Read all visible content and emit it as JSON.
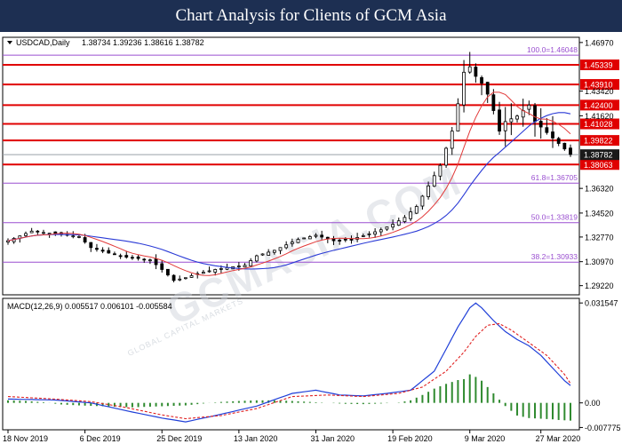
{
  "header": {
    "title": "Chart Analysis for Clients of GCM Asia"
  },
  "watermark": {
    "text": "GCMASIA.COM",
    "subtext": "GLOBAL CAPITAL MARKETS"
  },
  "colors": {
    "banner_bg": "#1d2f52",
    "resistance_line": "#e00000",
    "label_red_bg": "#e00000",
    "fib_line": "#9a4fd0",
    "ma_fast": "#e23a3a",
    "ma_slow": "#2a3ad6",
    "macd_line": "#1f3fd8",
    "signal_line": "#e02020",
    "histogram": "#2f8a2f",
    "candle_bull": "#ffffff",
    "candle_bear": "#000000"
  },
  "chart_data": [
    {
      "type": "candlestick",
      "symbol_info": "USDCAD,Daily",
      "ohlc_text": [
        "1.38734",
        "1.39236",
        "1.38616",
        "1.38782"
      ],
      "ylim": [
        1.2855,
        1.4735
      ],
      "y_ticks": [
        "1.46970",
        "1.43420",
        "1.41620",
        "1.36320",
        "1.34520",
        "1.32770",
        "1.30970",
        "1.29220"
      ],
      "last_price": "1.38782",
      "horizontal_levels": [
        {
          "value": 1.46048,
          "label": "100.0=1.46048",
          "kind": "fib"
        },
        {
          "value": 1.45339,
          "label": "1.45339",
          "kind": "resistance"
        },
        {
          "value": 1.4391,
          "label": "1.43910",
          "kind": "resistance"
        },
        {
          "value": 1.424,
          "label": "1.42400",
          "kind": "resistance"
        },
        {
          "value": 1.41028,
          "label": "1.41028",
          "kind": "resistance"
        },
        {
          "value": 1.39822,
          "label": "1.39822",
          "kind": "resistance"
        },
        {
          "value": 1.38063,
          "label": "1.38063",
          "kind": "support"
        },
        {
          "value": 1.36705,
          "label": "61.8=1.36705",
          "kind": "fib"
        },
        {
          "value": 1.33819,
          "label": "50.0=1.33819",
          "kind": "fib"
        },
        {
          "value": 1.30933,
          "label": "38.2=1.30933",
          "kind": "fib"
        }
      ],
      "x_ticks": [
        "18 Nov 2019",
        "6 Dec 2019",
        "25 Dec 2019",
        "13 Jan 2020",
        "31 Jan 2020",
        "19 Feb 2020",
        "9 Mar 2020",
        "27 Mar 2020"
      ],
      "close_path": [
        [
          0,
          1.325
        ],
        [
          4,
          1.332
        ],
        [
          8,
          1.33
        ],
        [
          12,
          1.328
        ],
        [
          14,
          1.32
        ],
        [
          17,
          1.316
        ],
        [
          20,
          1.313
        ],
        [
          24,
          1.311
        ],
        [
          26,
          1.304
        ],
        [
          28,
          1.296
        ],
        [
          30,
          1.298
        ],
        [
          32,
          1.301
        ],
        [
          35,
          1.304
        ],
        [
          38,
          1.306
        ],
        [
          40,
          1.307
        ],
        [
          42,
          1.314
        ],
        [
          45,
          1.318
        ],
        [
          49,
          1.326
        ],
        [
          52,
          1.329
        ],
        [
          55,
          1.325
        ],
        [
          58,
          1.326
        ],
        [
          61,
          1.33
        ],
        [
          63,
          1.333
        ],
        [
          65,
          1.337
        ],
        [
          67,
          1.342
        ],
        [
          69,
          1.35
        ],
        [
          71,
          1.365
        ],
        [
          73,
          1.38
        ],
        [
          75,
          1.405
        ],
        [
          76,
          1.425
        ],
        [
          77,
          1.448
        ],
        [
          78,
          1.452
        ],
        [
          79,
          1.445
        ],
        [
          80,
          1.44
        ],
        [
          81,
          1.432
        ],
        [
          82,
          1.42
        ],
        [
          83,
          1.405
        ],
        [
          84,
          1.412
        ],
        [
          85,
          1.414
        ],
        [
          86,
          1.416
        ],
        [
          87,
          1.42
        ],
        [
          88,
          1.424
        ],
        [
          89,
          1.412
        ],
        [
          90,
          1.408
        ],
        [
          91,
          1.404
        ],
        [
          92,
          1.4
        ],
        [
          93,
          1.396
        ],
        [
          94,
          1.392
        ],
        [
          95,
          1.388
        ]
      ],
      "bar_count": 96
    },
    {
      "type": "line",
      "title": "MACD(12,26,9) 0.005517 0.006101 -0.005584",
      "ylim": [
        -0.0085,
        0.033
      ],
      "y_ticks": [
        "0.031547",
        "0.00",
        "-0.007775"
      ],
      "series": [
        {
          "role": "macd",
          "points": [
            [
              0,
              0.0012
            ],
            [
              8,
              0.0009
            ],
            [
              14,
              0.0
            ],
            [
              20,
              -0.0025
            ],
            [
              26,
              -0.0048
            ],
            [
              30,
              -0.006
            ],
            [
              35,
              -0.004
            ],
            [
              42,
              -0.001
            ],
            [
              48,
              0.003
            ],
            [
              52,
              0.004
            ],
            [
              56,
              0.0025
            ],
            [
              60,
              0.0022
            ],
            [
              64,
              0.003
            ],
            [
              68,
              0.004
            ],
            [
              72,
              0.01
            ],
            [
              74,
              0.017
            ],
            [
              76,
              0.024
            ],
            [
              78,
              0.03
            ],
            [
              79,
              0.0315
            ],
            [
              80,
              0.03
            ],
            [
              82,
              0.026
            ],
            [
              84,
              0.0225
            ],
            [
              86,
              0.02
            ],
            [
              88,
              0.018
            ],
            [
              90,
              0.015
            ],
            [
              92,
              0.011
            ],
            [
              94,
              0.007
            ],
            [
              95,
              0.0055
            ]
          ]
        },
        {
          "role": "signal",
          "points": [
            [
              0,
              0.002
            ],
            [
              8,
              0.0012
            ],
            [
              14,
              0.0004
            ],
            [
              20,
              -0.0015
            ],
            [
              26,
              -0.0038
            ],
            [
              30,
              -0.005
            ],
            [
              36,
              -0.004
            ],
            [
              42,
              -0.0018
            ],
            [
              48,
              0.002
            ],
            [
              54,
              0.0025
            ],
            [
              60,
              0.002
            ],
            [
              66,
              0.003
            ],
            [
              70,
              0.005
            ],
            [
              74,
              0.01
            ],
            [
              77,
              0.016
            ],
            [
              79,
              0.021
            ],
            [
              81,
              0.0245
            ],
            [
              83,
              0.025
            ],
            [
              85,
              0.023
            ],
            [
              88,
              0.019
            ],
            [
              91,
              0.015
            ],
            [
              94,
              0.009
            ],
            [
              95,
              0.0061
            ]
          ]
        },
        {
          "role": "histogram",
          "points": [
            [
              0,
              0.0008
            ],
            [
              3,
              0.0006
            ],
            [
              6,
              0.0002
            ],
            [
              9,
              -0.0005
            ],
            [
              12,
              -0.0008
            ],
            [
              15,
              -0.001
            ],
            [
              18,
              -0.0012
            ],
            [
              21,
              -0.0014
            ],
            [
              24,
              -0.0012
            ],
            [
              27,
              -0.001
            ],
            [
              30,
              -0.0008
            ],
            [
              33,
              -0.0002
            ],
            [
              36,
              0.0003
            ],
            [
              39,
              0.0006
            ],
            [
              42,
              0.0008
            ],
            [
              45,
              0.0008
            ],
            [
              48,
              0.0006
            ],
            [
              51,
              0.0003
            ],
            [
              54,
              0.0
            ],
            [
              57,
              -0.0003
            ],
            [
              60,
              -0.0004
            ],
            [
              63,
              -0.0002
            ],
            [
              66,
              0.0001
            ],
            [
              68,
              0.0008
            ],
            [
              70,
              0.0025
            ],
            [
              72,
              0.0045
            ],
            [
              74,
              0.006
            ],
            [
              76,
              0.0072
            ],
            [
              77,
              0.0075
            ],
            [
              78,
              0.009
            ],
            [
              79,
              0.0082
            ],
            [
              80,
              0.007
            ],
            [
              81,
              0.005
            ],
            [
              82,
              0.003
            ],
            [
              83,
              0.001
            ],
            [
              84,
              -0.001
            ],
            [
              85,
              -0.0025
            ],
            [
              86,
              -0.004
            ],
            [
              88,
              -0.0048
            ],
            [
              90,
              -0.005
            ],
            [
              92,
              -0.0052
            ],
            [
              93,
              -0.0054
            ],
            [
              94,
              -0.0055
            ],
            [
              95,
              -0.0056
            ]
          ]
        }
      ]
    }
  ]
}
